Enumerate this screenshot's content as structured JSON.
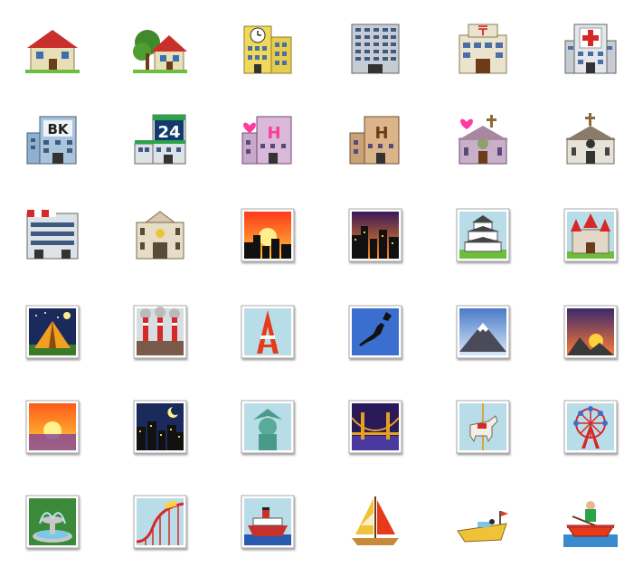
{
  "icons": [
    {
      "name": "house-building-icon"
    },
    {
      "name": "house-with-garden-icon"
    },
    {
      "name": "office-building-clock-icon"
    },
    {
      "name": "office-building-icon"
    },
    {
      "name": "post-office-icon"
    },
    {
      "name": "hospital-icon"
    },
    {
      "name": "bank-icon"
    },
    {
      "name": "convenience-store-icon"
    },
    {
      "name": "love-hotel-icon"
    },
    {
      "name": "hotel-icon"
    },
    {
      "name": "wedding-chapel-icon"
    },
    {
      "name": "church-icon"
    },
    {
      "name": "department-store-icon"
    },
    {
      "name": "european-post-office-icon"
    },
    {
      "name": "city-sunset-icon"
    },
    {
      "name": "city-dusk-icon"
    },
    {
      "name": "japanese-castle-icon"
    },
    {
      "name": "european-castle-icon"
    },
    {
      "name": "tent-camping-icon"
    },
    {
      "name": "factory-icon"
    },
    {
      "name": "tokyo-tower-icon"
    },
    {
      "name": "map-of-japan-icon"
    },
    {
      "name": "mount-fuji-icon"
    },
    {
      "name": "sunrise-over-mountains-icon"
    },
    {
      "name": "sunrise-icon"
    },
    {
      "name": "night-with-stars-icon"
    },
    {
      "name": "statue-of-liberty-icon"
    },
    {
      "name": "bridge-at-night-icon"
    },
    {
      "name": "carousel-horse-icon"
    },
    {
      "name": "ferris-wheel-icon"
    },
    {
      "name": "fountain-icon"
    },
    {
      "name": "roller-coaster-icon"
    },
    {
      "name": "ship-icon"
    },
    {
      "name": "sailboat-icon"
    },
    {
      "name": "speedboat-icon"
    },
    {
      "name": "rowboat-icon"
    }
  ],
  "labels": {
    "bank": "BK",
    "store": "24",
    "hotel": "H"
  }
}
